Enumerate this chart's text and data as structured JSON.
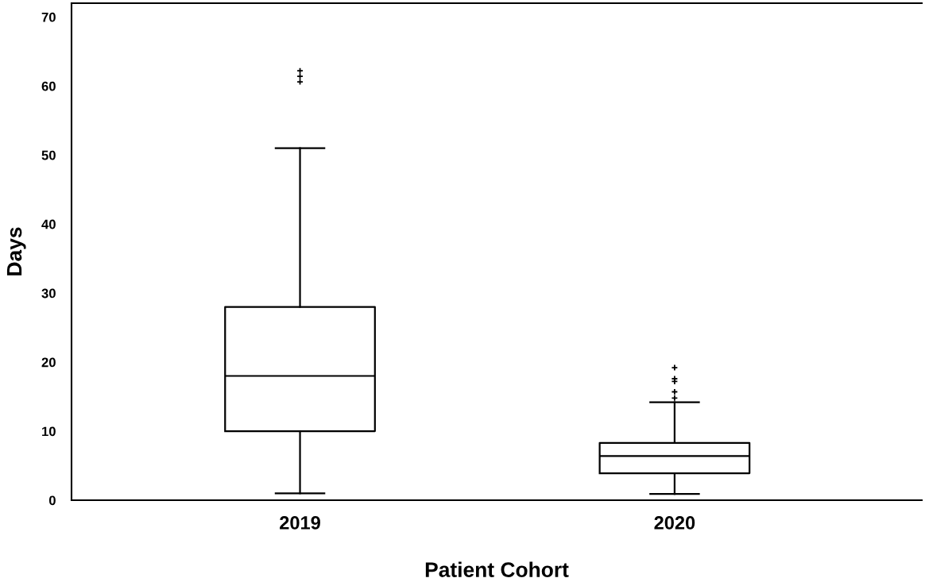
{
  "chart_data": {
    "type": "box",
    "xlabel": "Patient Cohort",
    "ylabel": "Days",
    "categories": [
      "2019",
      "2020"
    ],
    "boxes": [
      {
        "low": 1,
        "q1": 10,
        "median": 18,
        "q3": 28,
        "high": 51,
        "outliers": [
          60.6,
          61.4,
          62.2
        ]
      },
      {
        "low": 0.9,
        "q1": 3.9,
        "median": 6.4,
        "q3": 8.3,
        "high": 14.2,
        "outliers": [
          14.8,
          15.7,
          17.2,
          17.6,
          19.2
        ]
      }
    ],
    "color": "#000000",
    "marker": "cross",
    "ylim": [
      0,
      72
    ],
    "yticks": [
      0,
      10,
      20,
      30,
      40,
      50,
      60,
      70
    ],
    "grid": false
  }
}
